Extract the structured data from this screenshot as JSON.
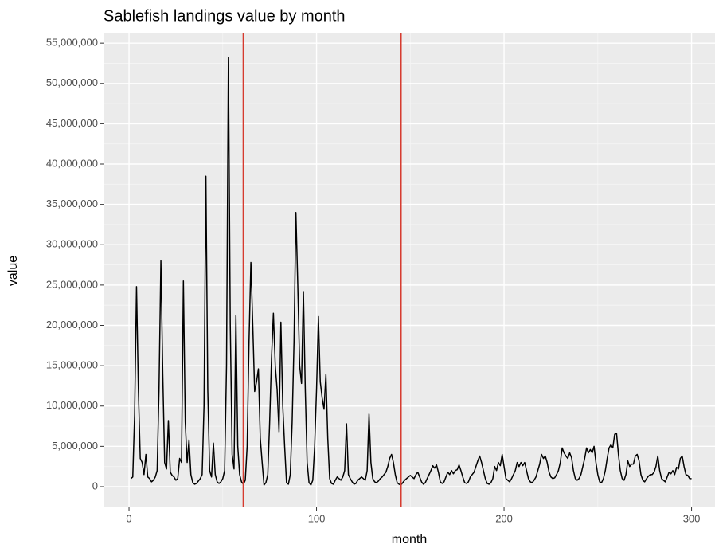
{
  "chart_data": {
    "type": "line",
    "title": "Sablefish landings value by month",
    "x_label": "month",
    "y_label": "value",
    "xlim": [
      -13.6,
      312.5
    ],
    "ylim": [
      -2570000,
      56200000
    ],
    "xticks": [
      0,
      100,
      200,
      300
    ],
    "x_minor_ticks": [
      50,
      150,
      250
    ],
    "yticks": [
      0,
      {
        "value": 5000000,
        "label": "5,000,000"
      },
      {
        "value": 10000000,
        "label": "10,000,000"
      },
      {
        "value": 15000000,
        "label": "15,000,000"
      },
      {
        "value": 20000000,
        "label": "20,000,000"
      },
      {
        "value": 25000000,
        "label": "25,000,000"
      },
      {
        "value": 30000000,
        "label": "30,000,000"
      },
      {
        "value": 35000000,
        "label": "35,000,000"
      },
      {
        "value": 40000000,
        "label": "40,000,000"
      },
      {
        "value": 45000000,
        "label": "45,000,000"
      },
      {
        "value": 50000000,
        "label": "50,000,000"
      },
      {
        "value": 55000000,
        "label": "55,000,000"
      }
    ],
    "y_minor_ticks": [
      2500000,
      7500000,
      12500000,
      17500000,
      22500000,
      27500000,
      32500000,
      37500000,
      42500000,
      47500000,
      52500000
    ],
    "grid": true,
    "vlines": [
      61,
      145
    ],
    "vline_color": "#d63b2f",
    "color": "#000000",
    "x": [
      1,
      2,
      3,
      4,
      5,
      6,
      7,
      8,
      9,
      10,
      11,
      12,
      13,
      14,
      15,
      16,
      17,
      18,
      19,
      20,
      21,
      22,
      23,
      24,
      25,
      26,
      27,
      28,
      29,
      30,
      31,
      32,
      33,
      34,
      35,
      36,
      37,
      38,
      39,
      40,
      41,
      42,
      43,
      44,
      45,
      46,
      47,
      48,
      49,
      50,
      51,
      52,
      53,
      54,
      55,
      56,
      57,
      58,
      59,
      60,
      61,
      62,
      63,
      64,
      65,
      66,
      67,
      68,
      69,
      70,
      71,
      72,
      73,
      74,
      75,
      76,
      77,
      78,
      79,
      80,
      81,
      82,
      83,
      84,
      85,
      86,
      87,
      88,
      89,
      90,
      91,
      92,
      93,
      94,
      95,
      96,
      97,
      98,
      99,
      100,
      101,
      102,
      103,
      104,
      105,
      106,
      107,
      108,
      109,
      110,
      111,
      112,
      113,
      114,
      115,
      116,
      117,
      118,
      119,
      120,
      121,
      122,
      123,
      124,
      125,
      126,
      127,
      128,
      129,
      130,
      131,
      132,
      133,
      134,
      135,
      136,
      137,
      138,
      139,
      140,
      141,
      142,
      143,
      144,
      145,
      146,
      147,
      148,
      149,
      150,
      151,
      152,
      153,
      154,
      155,
      156,
      157,
      158,
      159,
      160,
      161,
      162,
      163,
      164,
      165,
      166,
      167,
      168,
      169,
      170,
      171,
      172,
      173,
      174,
      175,
      176,
      177,
      178,
      179,
      180,
      181,
      182,
      183,
      184,
      185,
      186,
      187,
      188,
      189,
      190,
      191,
      192,
      193,
      194,
      195,
      196,
      197,
      198,
      199,
      200,
      201,
      202,
      203,
      204,
      205,
      206,
      207,
      208,
      209,
      210,
      211,
      212,
      213,
      214,
      215,
      216,
      217,
      218,
      219,
      220,
      221,
      222,
      223,
      224,
      225,
      226,
      227,
      228,
      229,
      230,
      231,
      232,
      233,
      234,
      235,
      236,
      237,
      238,
      239,
      240,
      241,
      242,
      243,
      244,
      245,
      246,
      247,
      248,
      249,
      250,
      251,
      252,
      253,
      254,
      255,
      256,
      257,
      258,
      259,
      260,
      261,
      262,
      263,
      264,
      265,
      266,
      267,
      268,
      269,
      270,
      271,
      272,
      273,
      274,
      275,
      276,
      277,
      278,
      279,
      280,
      281,
      282,
      283,
      284,
      285,
      286,
      287,
      288,
      289,
      290,
      291,
      292,
      293,
      294,
      295,
      296,
      297,
      298,
      299,
      300
    ],
    "values": [
      1000000,
      1200000,
      9000000,
      24800000,
      12000000,
      3500000,
      3000000,
      1500000,
      4000000,
      1200000,
      1000000,
      600000,
      800000,
      1200000,
      2000000,
      12000000,
      28000000,
      14000000,
      3000000,
      2200000,
      8200000,
      1800000,
      1400000,
      1200000,
      800000,
      1000000,
      3500000,
      3000000,
      25500000,
      8000000,
      3000000,
      5800000,
      1500000,
      500000,
      300000,
      400000,
      700000,
      1000000,
      1500000,
      10000000,
      38500000,
      12000000,
      2000000,
      1200000,
      5400000,
      1500000,
      600000,
      400000,
      600000,
      1000000,
      2000000,
      15000000,
      53200000,
      20000000,
      4000000,
      2200000,
      21200000,
      5000000,
      1500000,
      600000,
      300000,
      800000,
      5000000,
      18000000,
      27800000,
      20000000,
      11800000,
      13000000,
      14600000,
      6000000,
      3000000,
      200000,
      500000,
      1500000,
      8000000,
      16000000,
      21500000,
      15000000,
      12000000,
      6800000,
      20400000,
      10000000,
      5000000,
      500000,
      300000,
      1500000,
      8000000,
      18000000,
      34000000,
      25000000,
      15000000,
      12800000,
      24200000,
      12000000,
      3000000,
      500000,
      200000,
      800000,
      5000000,
      12000000,
      21100000,
      13000000,
      11000000,
      9600000,
      13900000,
      6000000,
      1000000,
      400000,
      300000,
      800000,
      1200000,
      1000000,
      800000,
      1200000,
      2000000,
      7800000,
      1500000,
      1000000,
      600000,
      300000,
      400000,
      800000,
      1000000,
      1200000,
      1000000,
      800000,
      2000000,
      9000000,
      3000000,
      1000000,
      600000,
      500000,
      700000,
      1000000,
      1200000,
      1500000,
      1800000,
      2500000,
      3500000,
      4000000,
      3000000,
      1500000,
      500000,
      300000,
      200000,
      500000,
      800000,
      1000000,
      1200000,
      1400000,
      1200000,
      1000000,
      1500000,
      1800000,
      1200000,
      600000,
      300000,
      500000,
      1000000,
      1500000,
      2000000,
      2600000,
      2300000,
      2700000,
      1800000,
      600000,
      400000,
      600000,
      1200000,
      1800000,
      1500000,
      2000000,
      1600000,
      2000000,
      2100000,
      2700000,
      2000000,
      1200000,
      500000,
      400000,
      600000,
      1200000,
      1500000,
      1800000,
      2500000,
      3200000,
      3800000,
      3000000,
      2000000,
      1000000,
      400000,
      300000,
      500000,
      1000000,
      2500000,
      2000000,
      3000000,
      2600000,
      4000000,
      2500000,
      1000000,
      800000,
      600000,
      1000000,
      1500000,
      2000000,
      3000000,
      2500000,
      3000000,
      2600000,
      3000000,
      2000000,
      1000000,
      600000,
      500000,
      800000,
      1200000,
      2000000,
      2800000,
      4000000,
      3500000,
      3800000,
      3000000,
      1800000,
      1200000,
      1000000,
      1100000,
      1500000,
      2000000,
      3000000,
      4800000,
      4200000,
      3800000,
      3500000,
      4200000,
      3600000,
      2000000,
      1000000,
      800000,
      1000000,
      1500000,
      2500000,
      3500000,
      4800000,
      4200000,
      4600000,
      4200000,
      5000000,
      3000000,
      1500000,
      600000,
      500000,
      1000000,
      2000000,
      3500000,
      4800000,
      5200000,
      4800000,
      6500000,
      6600000,
      4000000,
      2000000,
      1000000,
      800000,
      1500000,
      3200000,
      2500000,
      2800000,
      2800000,
      3800000,
      4000000,
      3200000,
      1500000,
      800000,
      600000,
      1000000,
      1300000,
      1500000,
      1500000,
      1800000,
      2500000,
      3800000,
      2000000,
      1000000,
      800000,
      600000,
      1200000,
      1800000,
      1600000,
      2000000,
      1500000,
      2400000,
      2200000,
      3500000,
      3800000,
      2500000,
      1500000,
      1400000,
      1000000,
      1000000
    ]
  }
}
